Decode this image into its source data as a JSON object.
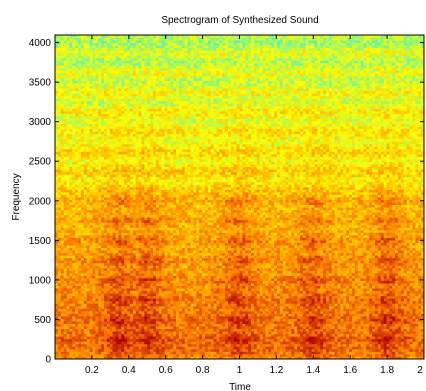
{
  "chart_data": {
    "type": "heatmap",
    "title": "Spectrogram of Synthesized Sound",
    "xlabel": "Time",
    "ylabel": "Frequency",
    "xlim": [
      0,
      2
    ],
    "ylim": [
      0,
      4096
    ],
    "x_ticks": [
      0.2,
      0.4,
      0.6,
      0.8,
      1,
      1.2,
      1.4,
      1.6,
      1.8,
      2
    ],
    "x_tick_labels": [
      "0.2",
      "0.4",
      "0.6",
      "0.8",
      "1",
      "1.2",
      "1.4",
      "1.6",
      "1.8",
      "2"
    ],
    "y_ticks": [
      0,
      500,
      1000,
      1500,
      2000,
      2500,
      3000,
      3500,
      4000
    ],
    "y_tick_labels": [
      "0",
      "500",
      "1000",
      "1500",
      "2000",
      "2500",
      "3000",
      "3500",
      "4000"
    ],
    "grid": false,
    "colormap": "jet",
    "colormap_visible_range": [
      "#40f0d0",
      "#ffff00",
      "#ff8000",
      "#b00000"
    ],
    "intensity_summary": {
      "high_energy_bands_hz": [
        250,
        500,
        750,
        1000,
        1250,
        1500,
        1750,
        2000
      ],
      "high_energy_times": [
        0.35,
        0.5,
        1.0,
        1.4,
        1.8
      ],
      "low_energy_bands_hz": [
        3500,
        3750,
        4000
      ]
    }
  }
}
